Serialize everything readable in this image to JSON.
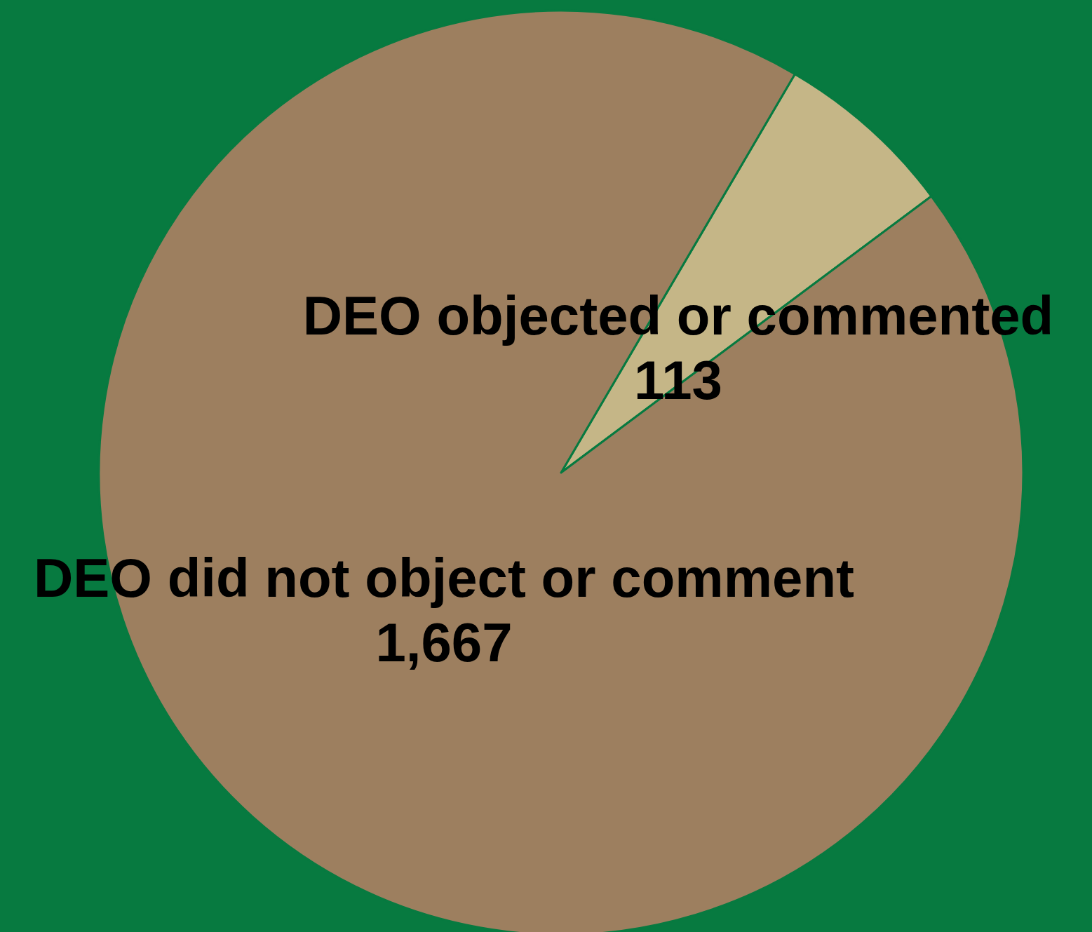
{
  "chart_data": {
    "type": "pie",
    "categories": [
      "DEO objected or commented",
      "DEO did not object or comment"
    ],
    "values": [
      113,
      1667
    ],
    "colors": [
      "#c5b687",
      "#9d7f5f"
    ],
    "value_labels": [
      "113",
      "1,667"
    ]
  }
}
